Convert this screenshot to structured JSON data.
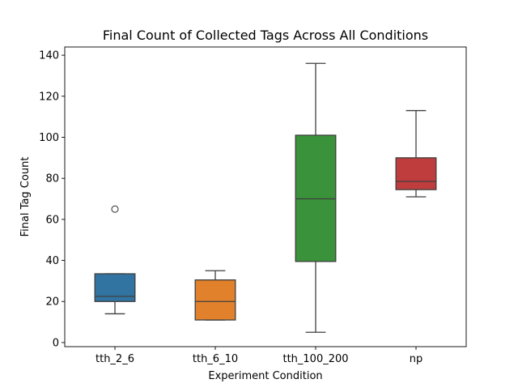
{
  "chart_data": {
    "type": "box",
    "title": "Final Count of Collected Tags Across All Conditions",
    "xlabel": "Experiment Condition",
    "ylabel": "Final Tag Count",
    "ylim": [
      -2,
      144
    ],
    "yticks": [
      0,
      20,
      40,
      60,
      80,
      100,
      120,
      140
    ],
    "grid": false,
    "legend": "none",
    "categories": [
      "tth_2_6",
      "tth_6_10",
      "tth_100_200",
      "np"
    ],
    "boxes": [
      {
        "category": "tth_2_6",
        "color": "#3274a1",
        "whisker_low": 14,
        "q1": 20,
        "median": 22.5,
        "q3": 33.5,
        "whisker_high": 33.5,
        "outliers": [
          65
        ]
      },
      {
        "category": "tth_6_10",
        "color": "#e1812c",
        "whisker_low": 11,
        "q1": 11,
        "median": 20,
        "q3": 30.5,
        "whisker_high": 35,
        "outliers": []
      },
      {
        "category": "tth_100_200",
        "color": "#3a923a",
        "whisker_low": 5,
        "q1": 39.5,
        "median": 70,
        "q3": 101,
        "whisker_high": 136,
        "outliers": []
      },
      {
        "category": "np",
        "color": "#c03d3e",
        "whisker_low": 71,
        "q1": 74.5,
        "median": 78.5,
        "q3": 90,
        "whisker_high": 113,
        "outliers": []
      }
    ]
  }
}
